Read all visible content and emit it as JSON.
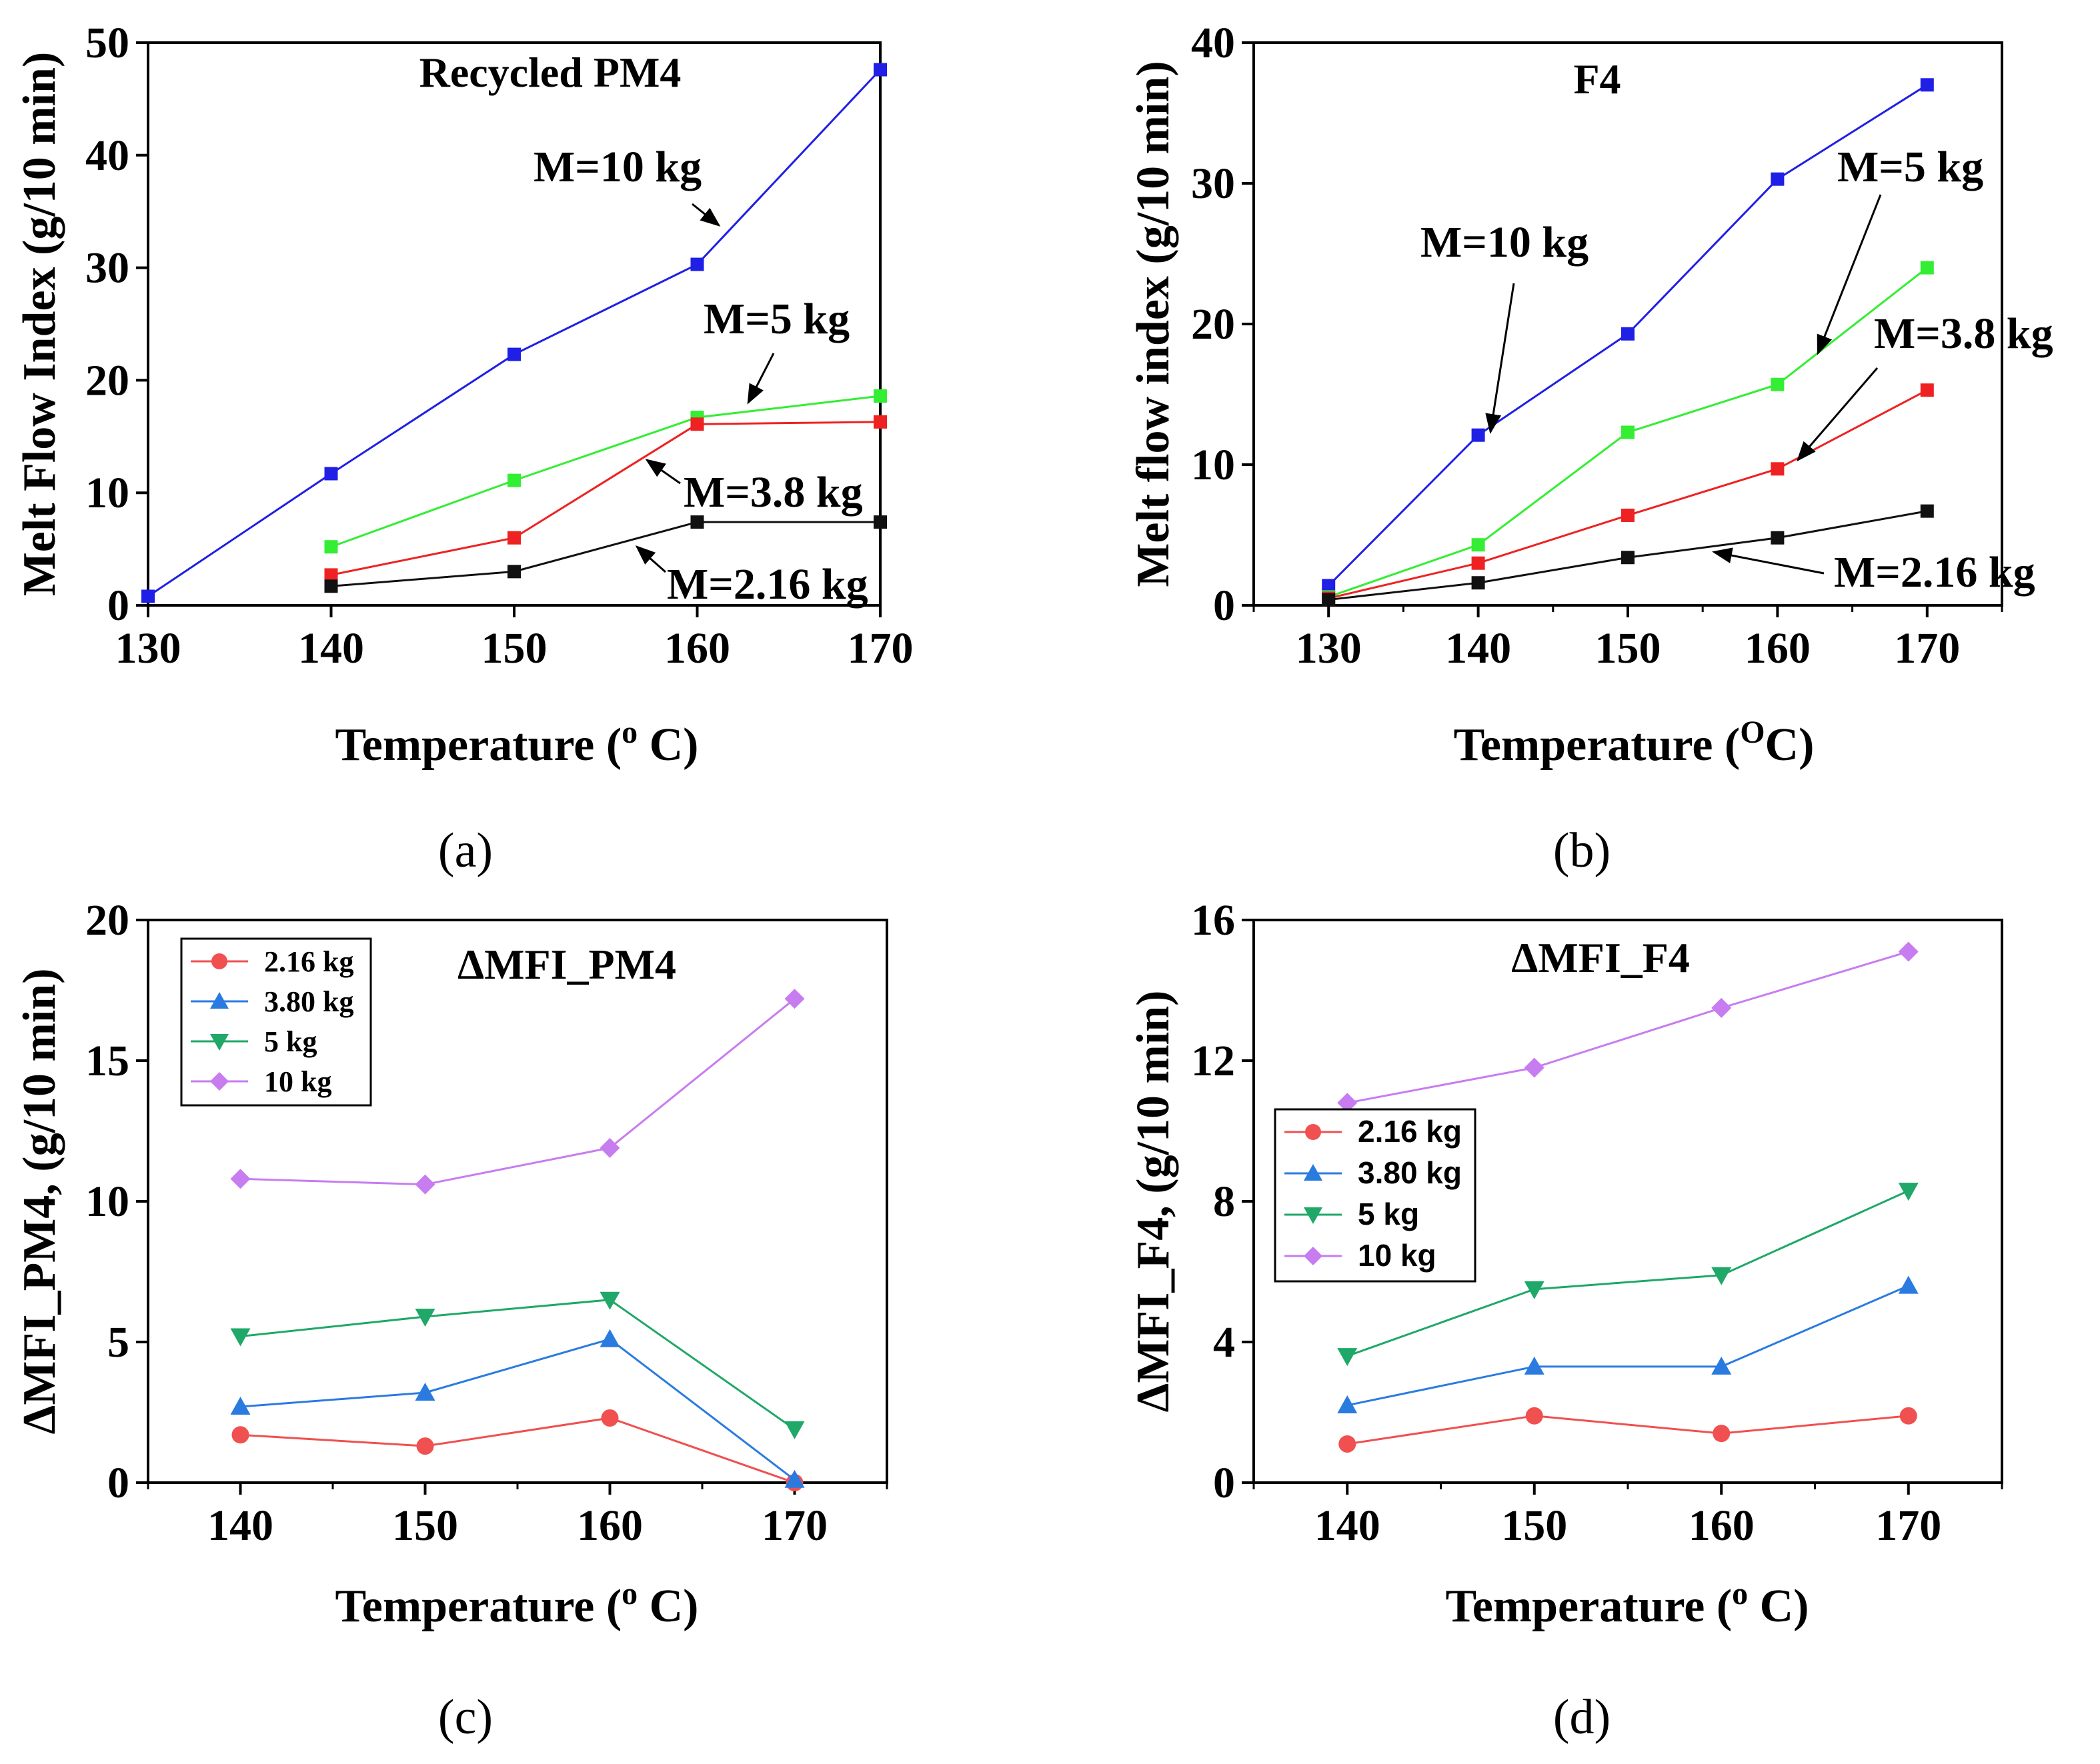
{
  "chart_data": [
    {
      "id": "a",
      "type": "line",
      "caption": "(a)",
      "title": "Recycled PM4",
      "xlabel": "Temperature (º C)",
      "xlabel_main": "Temperature (",
      "xlabel_sup": "o",
      "xlabel_tail": " C)",
      "ylabel": "Melt Flow Index (g/10 min)",
      "xlim": [
        130,
        170
      ],
      "ylim": [
        0,
        50
      ],
      "xticks": [
        "130",
        "140",
        "150",
        "160",
        "170"
      ],
      "yticks": [
        "0",
        "10",
        "20",
        "30",
        "40",
        "50"
      ],
      "series": [
        {
          "name": "M=10 kg",
          "color": "#1f1fe6",
          "marker": "square",
          "x": [
            130,
            140,
            150,
            160,
            170
          ],
          "values": [
            0.8,
            11.7,
            22.3,
            30.3,
            47.6
          ]
        },
        {
          "name": "M=5 kg",
          "color": "#33ee33",
          "marker": "square",
          "x": [
            140,
            150,
            160,
            170
          ],
          "values": [
            5.2,
            11.1,
            16.7,
            18.6
          ]
        },
        {
          "name": "M=3.8 kg",
          "color": "#ee2222",
          "marker": "square",
          "x": [
            140,
            150,
            160,
            170
          ],
          "values": [
            2.7,
            6.0,
            16.1,
            16.3
          ]
        },
        {
          "name": "M=2.16 kg",
          "color": "#111111",
          "marker": "square",
          "x": [
            140,
            150,
            160,
            170
          ],
          "values": [
            1.7,
            3.0,
            7.4,
            7.4
          ]
        }
      ],
      "annotations": [
        "M=10 kg",
        "M=5 kg",
        "M=3.8 kg",
        "M=2.16 kg"
      ]
    },
    {
      "id": "b",
      "type": "line",
      "caption": "(b)",
      "title": "F4",
      "xlabel": "Temperature (ºC)",
      "xlabel_main": "Temperature (",
      "xlabel_sup": "O",
      "xlabel_tail": "C)",
      "ylabel": "Melt flow index (g/10 min)",
      "xlim": [
        125,
        175
      ],
      "ylim": [
        0,
        40
      ],
      "xticks": [
        "130",
        "140",
        "150",
        "160",
        "170"
      ],
      "yticks": [
        "0",
        "10",
        "20",
        "30",
        "40"
      ],
      "series": [
        {
          "name": "M=10 kg",
          "color": "#1f1fe6",
          "marker": "square",
          "x": [
            130,
            140,
            150,
            160,
            170
          ],
          "values": [
            1.4,
            12.1,
            19.3,
            30.3,
            37.0
          ]
        },
        {
          "name": "M=5 kg",
          "color": "#33ee33",
          "marker": "square",
          "x": [
            130,
            140,
            150,
            160,
            170
          ],
          "values": [
            0.6,
            4.3,
            12.3,
            15.7,
            24.0
          ]
        },
        {
          "name": "M=3.8 kg",
          "color": "#ee2222",
          "marker": "square",
          "x": [
            130,
            140,
            150,
            160,
            170
          ],
          "values": [
            0.5,
            3.0,
            6.4,
            9.7,
            15.3
          ]
        },
        {
          "name": "M=2.16 kg",
          "color": "#111111",
          "marker": "square",
          "x": [
            130,
            140,
            150,
            160,
            170
          ],
          "values": [
            0.4,
            1.6,
            3.4,
            4.8,
            6.7
          ]
        }
      ],
      "annotations": [
        "M=10 kg",
        "M=5 kg",
        "M=3.8 kg",
        "M=2.16 kg"
      ]
    },
    {
      "id": "c",
      "type": "line",
      "caption": "(c)",
      "title": "ΔMFI_PM4",
      "xlabel": "Temperature (º C)",
      "xlabel_main": "Temperature (",
      "xlabel_sup": "o",
      "xlabel_tail": " C)",
      "ylabel": "ΔMFI_PM4, (g/10 min)",
      "xlim": [
        135,
        175
      ],
      "ylim": [
        0,
        20
      ],
      "xticks": [
        "140",
        "150",
        "160",
        "170"
      ],
      "yticks": [
        "0",
        "5",
        "10",
        "15",
        "20"
      ],
      "legend": "top-left",
      "series": [
        {
          "name": "2.16 kg",
          "color": "#f05050",
          "marker": "circle",
          "x": [
            140,
            150,
            160,
            170
          ],
          "values": [
            1.7,
            1.3,
            2.3,
            0.0
          ]
        },
        {
          "name": "3.80 kg",
          "color": "#2a7be0",
          "marker": "triangle-up",
          "x": [
            140,
            150,
            160,
            170
          ],
          "values": [
            2.7,
            3.2,
            5.1,
            0.1
          ]
        },
        {
          "name": "5 kg",
          "color": "#1fa868",
          "marker": "triangle-down",
          "x": [
            140,
            150,
            160,
            170
          ],
          "values": [
            5.2,
            5.9,
            6.5,
            1.9
          ]
        },
        {
          "name": "10 kg",
          "color": "#c77cf0",
          "marker": "diamond",
          "x": [
            140,
            150,
            160,
            170
          ],
          "values": [
            10.8,
            10.6,
            11.9,
            17.2
          ]
        }
      ]
    },
    {
      "id": "d",
      "type": "line",
      "caption": "(d)",
      "title": "ΔMFI_F4",
      "xlabel": "Temperature (º C)",
      "xlabel_main": "Temperature (",
      "xlabel_sup": "o",
      "xlabel_tail": " C)",
      "ylabel": "ΔMFI_F4, (g/10 min)",
      "xlim": [
        135,
        175
      ],
      "ylim": [
        0,
        16
      ],
      "xticks": [
        "140",
        "150",
        "160",
        "170"
      ],
      "yticks": [
        "0",
        "4",
        "8",
        "12",
        "16"
      ],
      "legend": "left",
      "series": [
        {
          "name": "2.16 kg",
          "color": "#f05050",
          "marker": "circle",
          "x": [
            140,
            150,
            160,
            170
          ],
          "values": [
            1.1,
            1.9,
            1.4,
            1.9
          ]
        },
        {
          "name": "3.80 kg",
          "color": "#2a7be0",
          "marker": "triangle-up",
          "x": [
            140,
            150,
            160,
            170
          ],
          "values": [
            2.2,
            3.3,
            3.3,
            5.6
          ]
        },
        {
          "name": "5 kg",
          "color": "#1fa868",
          "marker": "triangle-down",
          "x": [
            140,
            150,
            160,
            170
          ],
          "values": [
            3.6,
            5.5,
            5.9,
            8.3
          ]
        },
        {
          "name": "10 kg",
          "color": "#c77cf0",
          "marker": "diamond",
          "x": [
            140,
            150,
            160,
            170
          ],
          "values": [
            10.8,
            11.8,
            13.5,
            15.1
          ]
        }
      ]
    }
  ]
}
